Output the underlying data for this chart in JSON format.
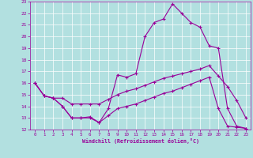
{
  "xlabel": "Windchill (Refroidissement éolien,°C)",
  "bg_color": "#b2e0e0",
  "line_color": "#990099",
  "grid_color": "#ffffff",
  "xlim": [
    -0.5,
    23.5
  ],
  "ylim": [
    12,
    23
  ],
  "xticks": [
    0,
    1,
    2,
    3,
    4,
    5,
    6,
    7,
    8,
    9,
    10,
    11,
    12,
    13,
    14,
    15,
    16,
    17,
    18,
    19,
    20,
    21,
    22,
    23
  ],
  "yticks": [
    12,
    13,
    14,
    15,
    16,
    17,
    18,
    19,
    20,
    21,
    22,
    23
  ],
  "line1_x": [
    0,
    1,
    2,
    3,
    4,
    5,
    6,
    7,
    8,
    9,
    10,
    11,
    12,
    13,
    14,
    15,
    16,
    17,
    18,
    19,
    20,
    21,
    22,
    23
  ],
  "line1_y": [
    16.0,
    14.9,
    14.7,
    14.0,
    13.0,
    13.0,
    13.1,
    12.6,
    13.8,
    16.7,
    16.5,
    16.8,
    20.0,
    21.2,
    21.5,
    22.8,
    22.0,
    21.2,
    20.8,
    19.2,
    19.0,
    13.8,
    12.3,
    12.1
  ],
  "line2_x": [
    0,
    1,
    2,
    3,
    4,
    5,
    6,
    7,
    8,
    9,
    10,
    11,
    12,
    13,
    14,
    15,
    16,
    17,
    18,
    19,
    20,
    21,
    22,
    23
  ],
  "line2_y": [
    16.0,
    14.9,
    14.7,
    14.7,
    14.2,
    14.2,
    14.2,
    14.2,
    14.6,
    15.0,
    15.3,
    15.5,
    15.8,
    16.1,
    16.4,
    16.6,
    16.8,
    17.0,
    17.2,
    17.5,
    16.6,
    15.7,
    14.5,
    13.0
  ],
  "line3_x": [
    0,
    1,
    2,
    3,
    4,
    5,
    6,
    7,
    8,
    9,
    10,
    11,
    12,
    13,
    14,
    15,
    16,
    17,
    18,
    19,
    20,
    21,
    22,
    23
  ],
  "line3_y": [
    16.0,
    14.9,
    14.7,
    14.0,
    13.0,
    13.0,
    13.0,
    12.6,
    13.2,
    13.8,
    14.0,
    14.2,
    14.5,
    14.8,
    15.1,
    15.3,
    15.6,
    15.9,
    16.2,
    16.5,
    13.8,
    12.3,
    12.2,
    12.1
  ]
}
